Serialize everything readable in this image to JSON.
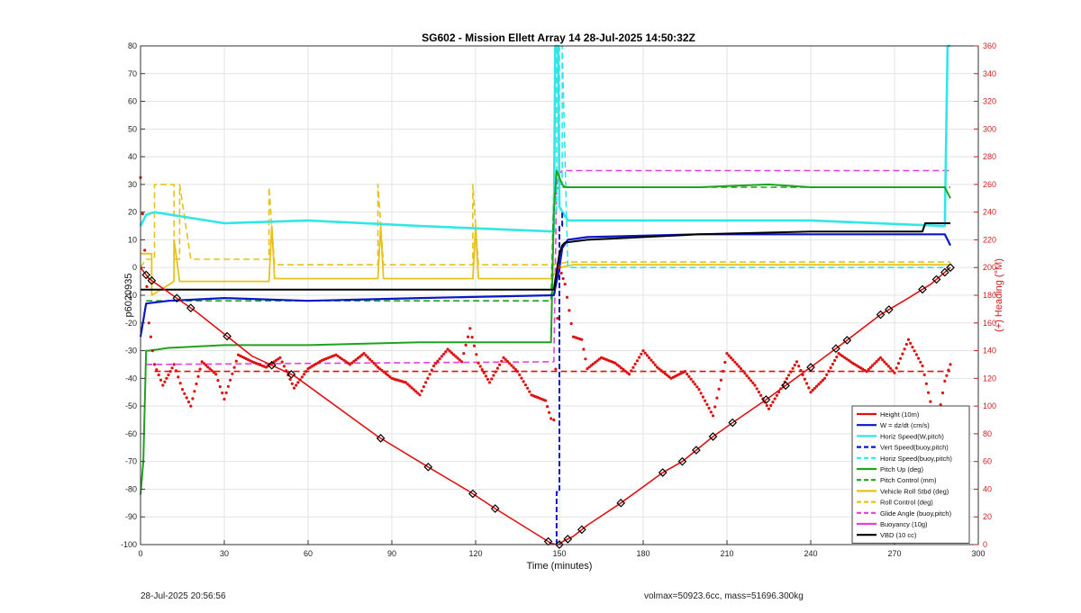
{
  "footer": {
    "left": "28-Jul-2025 20:56:56",
    "right": "volmax=50923.6cc, mass=51696.300kg"
  },
  "chart_data": {
    "type": "line",
    "title": "SG602 - Mission Ellett Array 14 28-Jul-2025 14:50:32Z",
    "xlabel": "Time (minutes)",
    "ylabel": "p6020935",
    "y2label": "(+) Heading (°M)",
    "xlim": [
      0,
      300
    ],
    "ylim": [
      -100,
      80
    ],
    "y2lim": [
      0,
      360
    ],
    "xticks": [
      0,
      30,
      60,
      90,
      120,
      150,
      180,
      210,
      240,
      270,
      300
    ],
    "yticks": [
      -100,
      -90,
      -80,
      -70,
      -60,
      -50,
      -40,
      -30,
      -20,
      -10,
      0,
      10,
      20,
      30,
      40,
      50,
      60,
      70,
      80
    ],
    "y2ticks": [
      0,
      20,
      40,
      60,
      80,
      100,
      120,
      140,
      160,
      180,
      200,
      220,
      240,
      260,
      280,
      300,
      320,
      340,
      360
    ],
    "grid": true,
    "legend_position": "bottom-right",
    "colors": {
      "red": "#e01010",
      "blue": "#0a16c8",
      "cyan": "#33e6e6",
      "green": "#1ea31e",
      "yellow": "#e6c21a",
      "magenta": "#e23fe2",
      "black": "#000000",
      "axis_right": "#cc2020"
    },
    "legend": [
      {
        "name": "Height (10m)",
        "color": "#e01010",
        "dash": false
      },
      {
        "name": "W = dz/dt (cm/s)",
        "color": "#0a16c8",
        "dash": false
      },
      {
        "name": "Horiz Speed(W,pitch)",
        "color": "#33e6e6",
        "dash": false
      },
      {
        "name": "Vert Speed(buoy,pitch)",
        "color": "#0a16c8",
        "dash": true
      },
      {
        "name": "Horiz Speed(buoy,pitch)",
        "color": "#33e6e6",
        "dash": true
      },
      {
        "name": "Pitch Up (deg)",
        "color": "#1ea31e",
        "dash": false
      },
      {
        "name": "Pitch Control (mm)",
        "color": "#1ea31e",
        "dash": true
      },
      {
        "name": "Vehicle Roll Stbd (deg)",
        "color": "#e6c21a",
        "dash": false
      },
      {
        "name": "Roll Control (deg)",
        "color": "#e6c21a",
        "dash": true
      },
      {
        "name": "Glide Angle (buoy,pitch)",
        "color": "#e23fe2",
        "dash": true
      },
      {
        "name": "Buoyancy (10g)",
        "color": "#e23fe2",
        "dash": false
      },
      {
        "name": "VBD (10 cc)",
        "color": "#000000",
        "dash": false
      }
    ],
    "series": [
      {
        "key": "height",
        "x": [
          0,
          3,
          20,
          40,
          55,
          85,
          103,
          118,
          127,
          147,
          149,
          150,
          151,
          155,
          160,
          172,
          187,
          194,
          205,
          212,
          225,
          240,
          252,
          265,
          275,
          283,
          290
        ],
        "y": [
          0,
          -4,
          -16,
          -32,
          -39,
          -61,
          -72,
          -81,
          -87,
          -99.5,
          -100,
          -100,
          -99,
          -97,
          -93,
          -85,
          -74,
          -70,
          -61,
          -56,
          -47,
          -36,
          -27,
          -17,
          -11,
          -6,
          0
        ]
      },
      {
        "key": "w",
        "x": [
          0,
          2,
          10,
          30,
          60,
          100,
          148,
          150,
          151,
          153,
          160,
          200,
          240,
          288,
          290
        ],
        "y": [
          -25,
          -13,
          -12,
          -11,
          -12,
          -11,
          -10,
          0,
          7,
          10,
          11,
          12,
          12,
          12,
          8
        ]
      },
      {
        "key": "horiz_w",
        "x": [
          0,
          2,
          5,
          30,
          60,
          100,
          148,
          148.5,
          149.5,
          150,
          153,
          160,
          200,
          240,
          288,
          289,
          290
        ],
        "y": [
          15,
          19,
          20,
          16,
          17,
          15,
          13,
          80,
          80,
          22,
          17,
          17,
          17,
          17,
          15,
          80,
          80
        ]
      },
      {
        "key": "vert_buoy",
        "x": [
          149,
          149,
          150,
          150,
          151,
          151
        ],
        "y": [
          -100,
          -81,
          -81,
          15,
          15,
          20
        ]
      },
      {
        "key": "horiz_buoy",
        "x": [
          149,
          149,
          150,
          150,
          151,
          151,
          153,
          290
        ],
        "y": [
          20,
          80,
          80,
          30,
          30,
          80,
          0,
          0
        ]
      },
      {
        "key": "pitch_up",
        "x": [
          0,
          1,
          2,
          3,
          10,
          30,
          60,
          100,
          147,
          148,
          149,
          151,
          152,
          160,
          200,
          225,
          240,
          288,
          290
        ],
        "y": [
          -82,
          -70,
          -30,
          -30,
          -29,
          -28,
          -28,
          -27,
          -27,
          20,
          35,
          30,
          29,
          29,
          29,
          30,
          29,
          29,
          25
        ]
      },
      {
        "key": "pitch_ctrl",
        "x": [
          2,
          147,
          148,
          150,
          151,
          290
        ],
        "y": [
          -12,
          -12,
          28,
          29,
          29,
          29
        ]
      },
      {
        "key": "roll",
        "x": [
          0,
          4,
          4,
          12,
          12,
          14,
          30,
          46,
          47,
          48,
          85,
          86,
          87,
          119,
          120,
          121,
          147,
          150,
          155,
          290
        ],
        "y": [
          5,
          5,
          -10,
          -5,
          10,
          -5,
          -5,
          -5,
          15,
          -4,
          -4,
          15,
          -4,
          -4,
          15,
          -4,
          -4,
          0,
          1,
          1
        ]
      },
      {
        "key": "roll_ctrl",
        "x": [
          0,
          2,
          5,
          5,
          12,
          12,
          14,
          14,
          18,
          46,
          46,
          48,
          85,
          85,
          87,
          119,
          119,
          121,
          148,
          153,
          290
        ],
        "y": [
          0,
          3,
          3,
          30,
          30,
          3,
          3,
          30,
          3,
          3,
          29,
          1,
          1,
          30,
          1,
          1,
          30,
          1,
          1,
          2,
          2
        ]
      },
      {
        "key": "glide_buoy",
        "x": [
          2,
          148,
          149,
          150,
          151,
          290
        ],
        "y": [
          -35,
          -34,
          30,
          34,
          35,
          35
        ]
      },
      {
        "key": "vbd",
        "x": [
          0,
          1,
          2,
          148,
          150,
          151,
          152,
          160,
          180,
          200,
          240,
          280,
          281,
          290
        ],
        "y": [
          -8,
          -8,
          -8,
          -8,
          5,
          8,
          9,
          10,
          11,
          12,
          13,
          13,
          16,
          16
        ]
      },
      {
        "key": "heading",
        "axis": "right",
        "x": [
          0,
          3,
          5,
          8,
          12,
          15,
          18,
          22,
          27,
          30,
          35,
          40,
          45,
          50,
          55,
          60,
          65,
          70,
          75,
          80,
          85,
          90,
          95,
          100,
          105,
          110,
          115,
          118,
          121,
          125,
          130,
          135,
          140,
          145,
          147,
          148,
          150,
          152,
          155,
          158,
          160,
          165,
          170,
          175,
          180,
          185,
          190,
          195,
          200,
          205,
          210,
          215,
          220,
          225,
          230,
          235,
          240,
          245,
          250,
          255,
          260,
          265,
          270,
          275,
          280,
          285,
          288,
          290
        ],
        "y": [
          265,
          160,
          130,
          115,
          130,
          112,
          100,
          132,
          123,
          105,
          137,
          132,
          128,
          135,
          113,
          127,
          133,
          137,
          130,
          138,
          128,
          120,
          117,
          108,
          129,
          141,
          132,
          156,
          131,
          117,
          135,
          125,
          108,
          104,
          91,
          90,
          200,
          188,
          150,
          148,
          127,
          135,
          131,
          123,
          140,
          128,
          120,
          125,
          112,
          93,
          138,
          127,
          115,
          98,
          115,
          132,
          110,
          120,
          138,
          131,
          125,
          135,
          124,
          148,
          129,
          84,
          118,
          130
        ]
      },
      {
        "key": "heading_ctrl",
        "axis": "right",
        "x": [
          5,
          290
        ],
        "y": [
          125,
          125
        ]
      }
    ],
    "markers_on_height_x": [
      2,
      4,
      13,
      18,
      31,
      47,
      54,
      86,
      103,
      119,
      127,
      146,
      150,
      153,
      158,
      172,
      187,
      194,
      199,
      205,
      212,
      224,
      231,
      240,
      249,
      253,
      265,
      268,
      280,
      285,
      288,
      290
    ]
  }
}
